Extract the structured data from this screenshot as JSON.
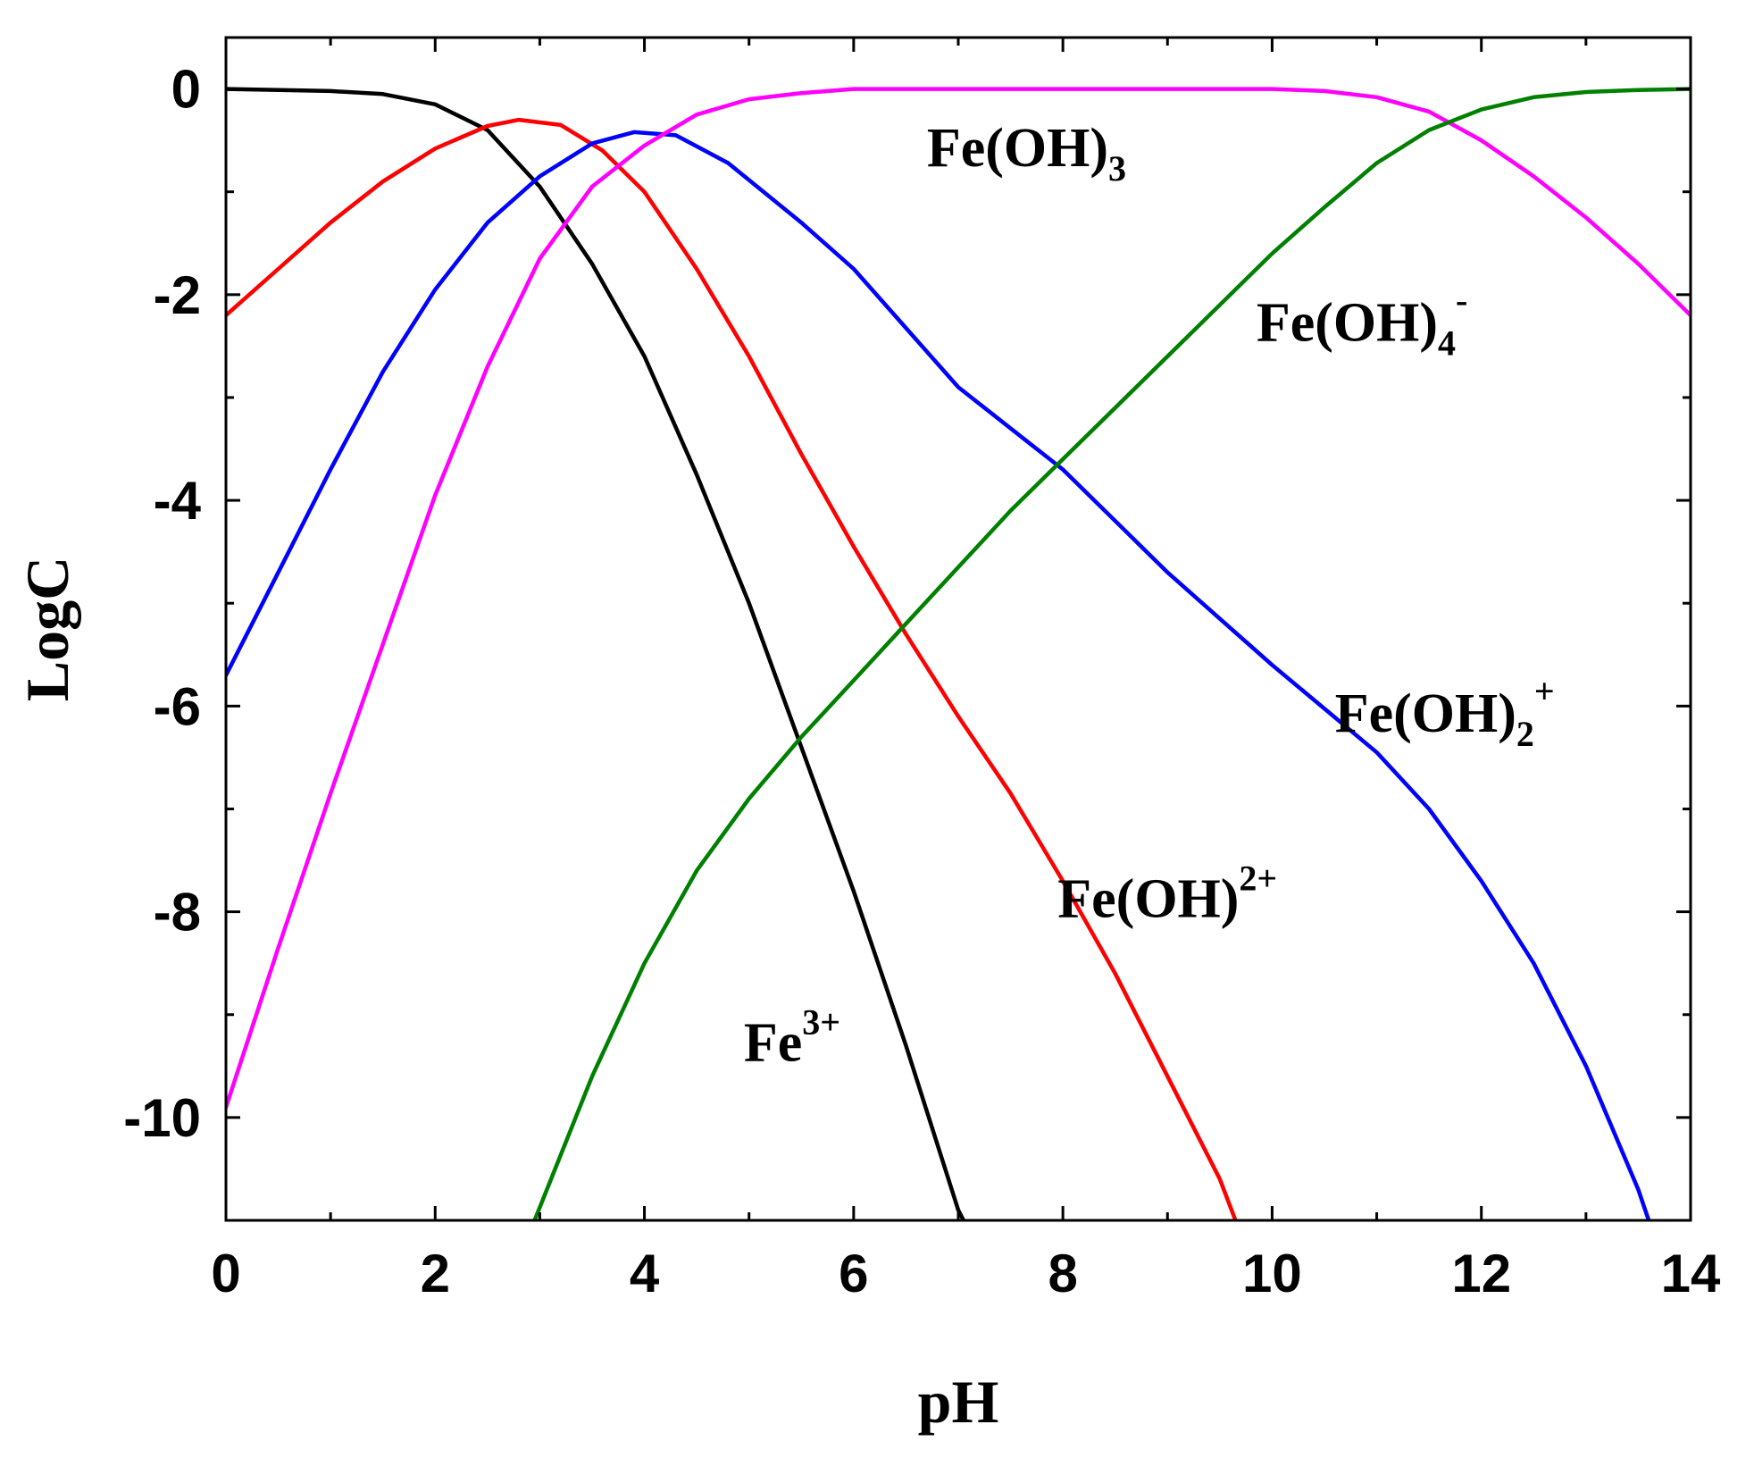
{
  "chart_data": {
    "type": "line",
    "xlabel": "pH",
    "ylabel": "LogC",
    "xlim": [
      0,
      14
    ],
    "ylim": [
      -11,
      0.5
    ],
    "xticks": [
      0,
      2,
      4,
      6,
      8,
      10,
      12,
      14
    ],
    "yticks": [
      0,
      -2,
      -4,
      -6,
      -8,
      -10
    ],
    "grid": false,
    "series": [
      {
        "base": "Fe",
        "sub": "",
        "sup": "3+",
        "color": "#000000",
        "label_at": [
          4.95,
          -9.45
        ],
        "points": [
          [
            0,
            0
          ],
          [
            1,
            -0.02
          ],
          [
            1.5,
            -0.05
          ],
          [
            2,
            -0.15
          ],
          [
            2.5,
            -0.4
          ],
          [
            3,
            -0.95
          ],
          [
            3.5,
            -1.7
          ],
          [
            4,
            -2.6
          ],
          [
            4.5,
            -3.75
          ],
          [
            5,
            -5.0
          ],
          [
            5.5,
            -6.4
          ],
          [
            6,
            -7.8
          ],
          [
            6.5,
            -9.3
          ],
          [
            7,
            -10.9
          ],
          [
            7.05,
            -11.0
          ]
        ]
      },
      {
        "base": "Fe(OH)",
        "sub": "",
        "sup": "2+",
        "color": "#ff0000",
        "label_at": [
          7.95,
          -8.05
        ],
        "points": [
          [
            0,
            -2.2
          ],
          [
            0.5,
            -1.75
          ],
          [
            1,
            -1.3
          ],
          [
            1.5,
            -0.9
          ],
          [
            2,
            -0.58
          ],
          [
            2.5,
            -0.36
          ],
          [
            2.8,
            -0.3
          ],
          [
            3.2,
            -0.35
          ],
          [
            3.6,
            -0.6
          ],
          [
            4,
            -1.0
          ],
          [
            4.5,
            -1.75
          ],
          [
            5,
            -2.6
          ],
          [
            5.5,
            -3.55
          ],
          [
            6,
            -4.45
          ],
          [
            6.5,
            -5.3
          ],
          [
            7,
            -6.1
          ],
          [
            7.5,
            -6.85
          ],
          [
            8,
            -7.7
          ],
          [
            8.5,
            -8.6
          ],
          [
            9,
            -9.6
          ],
          [
            9.5,
            -10.6
          ],
          [
            9.65,
            -11.0
          ]
        ]
      },
      {
        "base": "Fe(OH)",
        "sub": "2",
        "sup": "+",
        "color": "#0000ff",
        "label_at": [
          10.6,
          -6.25
        ],
        "points": [
          [
            0,
            -5.7
          ],
          [
            0.5,
            -4.7
          ],
          [
            1,
            -3.7
          ],
          [
            1.5,
            -2.75
          ],
          [
            2,
            -1.95
          ],
          [
            2.5,
            -1.3
          ],
          [
            3,
            -0.85
          ],
          [
            3.5,
            -0.53
          ],
          [
            3.9,
            -0.42
          ],
          [
            4.3,
            -0.45
          ],
          [
            4.8,
            -0.72
          ],
          [
            5.5,
            -1.3
          ],
          [
            6,
            -1.75
          ],
          [
            7,
            -2.9
          ],
          [
            8,
            -3.7
          ],
          [
            9,
            -4.7
          ],
          [
            10,
            -5.6
          ],
          [
            11,
            -6.45
          ],
          [
            11.5,
            -7.0
          ],
          [
            12,
            -7.7
          ],
          [
            12.5,
            -8.5
          ],
          [
            13,
            -9.5
          ],
          [
            13.5,
            -10.7
          ],
          [
            13.6,
            -11.0
          ]
        ]
      },
      {
        "base": "Fe(OH)",
        "sub": "3",
        "sup": "",
        "color": "#ff00ff",
        "label_at": [
          6.7,
          -0.75
        ],
        "points": [
          [
            0,
            -9.9
          ],
          [
            0.5,
            -8.35
          ],
          [
            1,
            -6.85
          ],
          [
            1.5,
            -5.4
          ],
          [
            2,
            -3.95
          ],
          [
            2.5,
            -2.7
          ],
          [
            3,
            -1.65
          ],
          [
            3.5,
            -0.95
          ],
          [
            4,
            -0.55
          ],
          [
            4.5,
            -0.25
          ],
          [
            5,
            -0.1
          ],
          [
            5.5,
            -0.04
          ],
          [
            6,
            0
          ],
          [
            8,
            0
          ],
          [
            10,
            0
          ],
          [
            10.5,
            -0.02
          ],
          [
            11,
            -0.08
          ],
          [
            11.5,
            -0.22
          ],
          [
            12,
            -0.5
          ],
          [
            12.5,
            -0.85
          ],
          [
            13,
            -1.25
          ],
          [
            13.5,
            -1.7
          ],
          [
            14,
            -2.2
          ]
        ]
      },
      {
        "base": "Fe(OH)",
        "sub": "4",
        "sup": "-",
        "color": "#008000",
        "label_at": [
          9.85,
          -2.45
        ],
        "points": [
          [
            2.95,
            -11.0
          ],
          [
            3.5,
            -9.6
          ],
          [
            4,
            -8.5
          ],
          [
            4.5,
            -7.6
          ],
          [
            5,
            -6.9
          ],
          [
            5.5,
            -6.3
          ],
          [
            6,
            -5.75
          ],
          [
            6.5,
            -5.2
          ],
          [
            7,
            -4.65
          ],
          [
            7.5,
            -4.1
          ],
          [
            8,
            -3.6
          ],
          [
            8.5,
            -3.1
          ],
          [
            9,
            -2.6
          ],
          [
            9.5,
            -2.1
          ],
          [
            10,
            -1.6
          ],
          [
            10.5,
            -1.15
          ],
          [
            11,
            -0.72
          ],
          [
            11.5,
            -0.4
          ],
          [
            12,
            -0.2
          ],
          [
            12.5,
            -0.08
          ],
          [
            13,
            -0.03
          ],
          [
            13.5,
            -0.01
          ],
          [
            14,
            0
          ]
        ]
      }
    ]
  }
}
